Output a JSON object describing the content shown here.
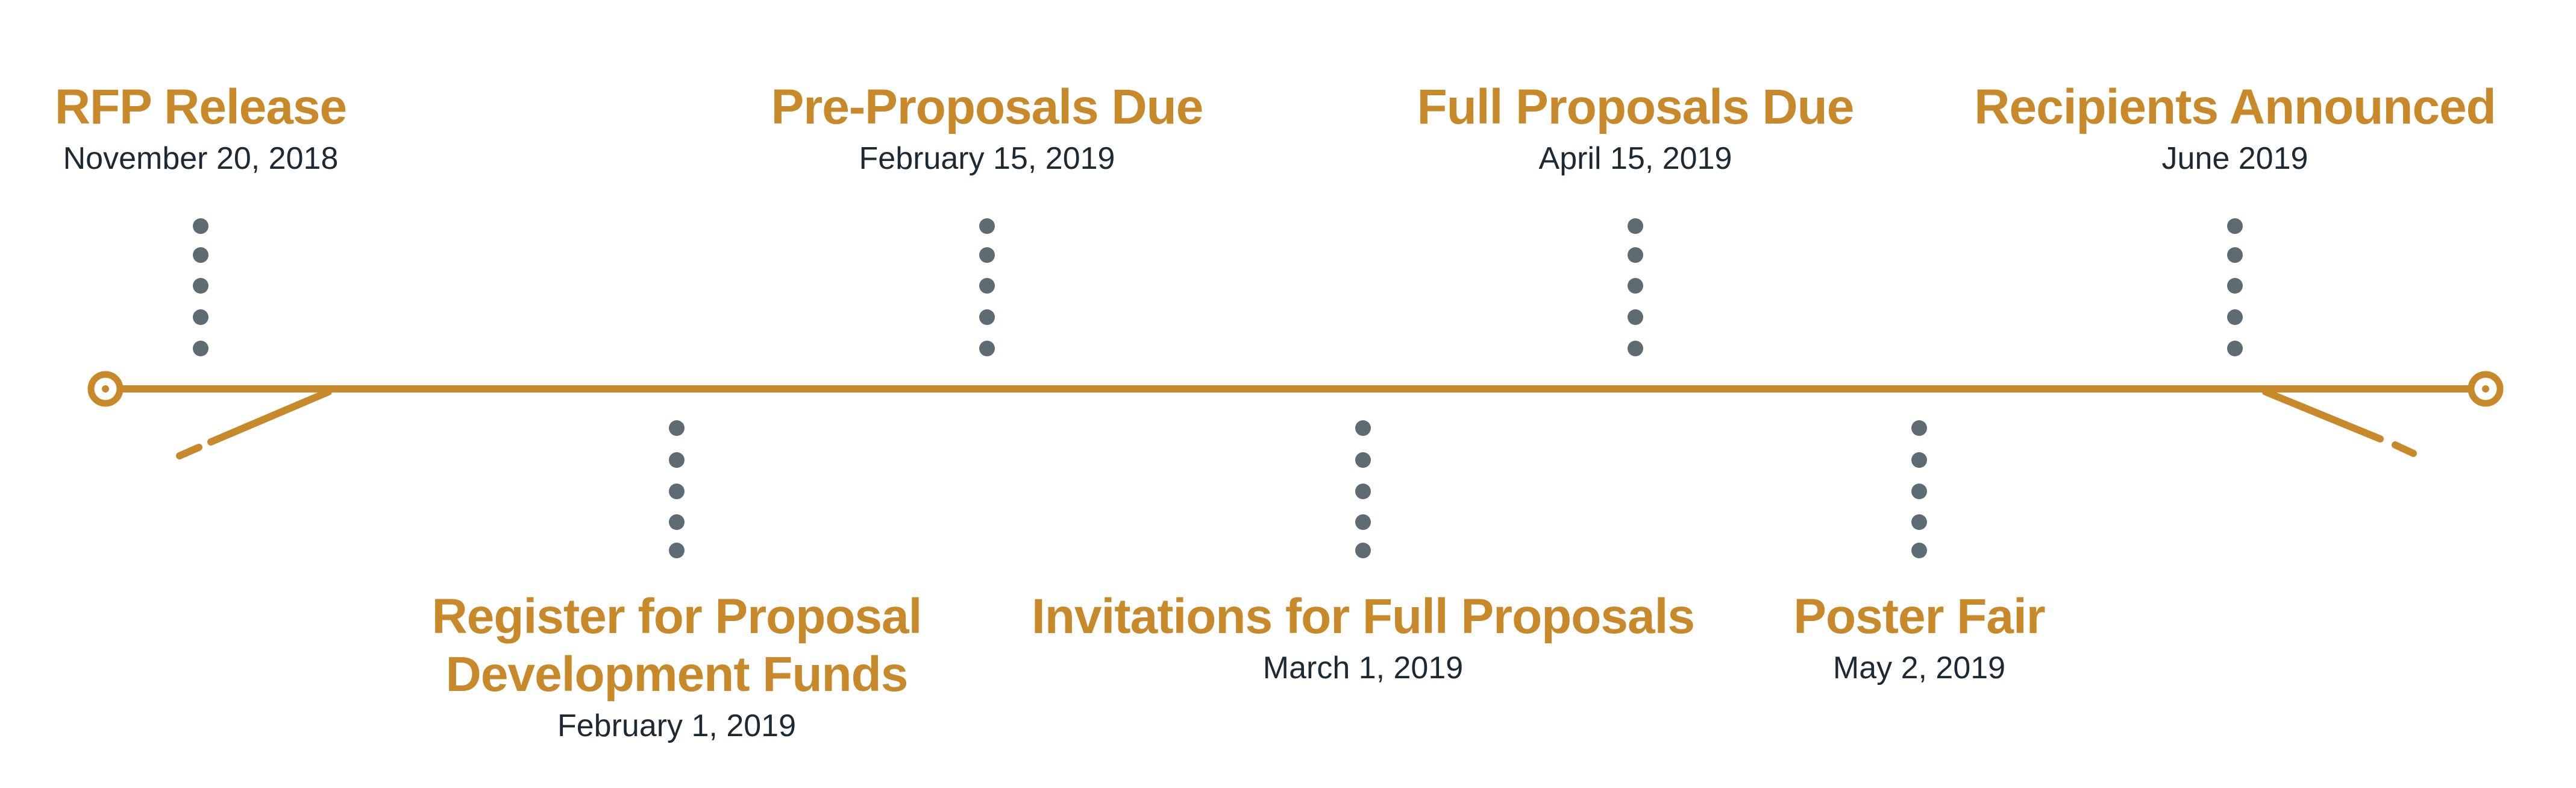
{
  "colors": {
    "accent": "#c8892a",
    "dots": "#5f6b73",
    "date_text": "#1e2a33",
    "background": "#ffffff"
  },
  "milestones": [
    {
      "title_lines": [
        "RFP Release"
      ],
      "date": "November 20, 2018",
      "position": "above"
    },
    {
      "title_lines": [
        "Register for Proposal",
        "Development Funds"
      ],
      "date": "February 1, 2019",
      "position": "below"
    },
    {
      "title_lines": [
        "Pre-Proposals Due"
      ],
      "date": "February 15, 2019",
      "position": "above"
    },
    {
      "title_lines": [
        "Invitations for Full Proposals"
      ],
      "date": "March 1, 2019",
      "position": "below"
    },
    {
      "title_lines": [
        "Full Proposals Due"
      ],
      "date": "April 15, 2019",
      "position": "above"
    },
    {
      "title_lines": [
        "Poster Fair"
      ],
      "date": "May 2, 2019",
      "position": "below"
    },
    {
      "title_lines": [
        "Recipients Announced"
      ],
      "date": "June 2019",
      "position": "above"
    }
  ]
}
